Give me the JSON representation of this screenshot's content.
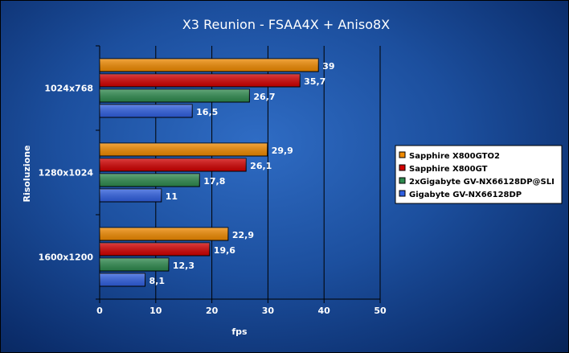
{
  "chart_data": {
    "type": "bar",
    "orientation": "horizontal",
    "title": "X3 Reunion - FSAA4X + Aniso8X",
    "xlabel": "fps",
    "ylabel": "Risoluzione",
    "xlim": [
      0,
      50
    ],
    "xticks": [
      0,
      10,
      20,
      30,
      40,
      50
    ],
    "grid": true,
    "legend_position": "right",
    "categories": [
      "1024x768",
      "1280x1024",
      "1600x1200"
    ],
    "series": [
      {
        "name": "Sapphire X800GTO2",
        "color": "#f08a00",
        "values": [
          39,
          29.9,
          22.9
        ],
        "labels": [
          "39",
          "29,9",
          "22,9"
        ]
      },
      {
        "name": "Sapphire X800GT",
        "color": "#d20000",
        "values": [
          35.7,
          26.1,
          19.6
        ],
        "labels": [
          "35,7",
          "26,1",
          "19,6"
        ]
      },
      {
        "name": "2xGigabyte GV-NX66128DP@SLI",
        "color": "#2e8a4e",
        "values": [
          26.7,
          17.8,
          12.3
        ],
        "labels": [
          "26,7",
          "17,8",
          "12,3"
        ]
      },
      {
        "name": "Gigabyte GV-NX66128DP",
        "color": "#2f5fe0",
        "values": [
          16.5,
          11,
          8.1
        ],
        "labels": [
          "16,5",
          "11",
          "8,1"
        ]
      }
    ]
  }
}
